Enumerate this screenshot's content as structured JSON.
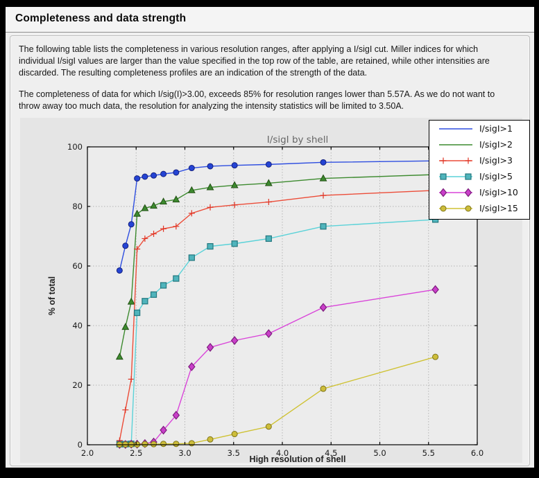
{
  "window": {
    "title": "Completeness and data strength"
  },
  "paragraphs": [
    "The following table lists the completeness in various resolution ranges, after applying a I/sigI cut. Miller indices for which individual I/sigI values are larger than the value specified in the top row of the table, are retained, while other intensities are discarded. The resulting completeness profiles are an indication of the strength of the data.",
    "The completeness of data for which I/sig(I)>3.00, exceeds  85% for resolution ranges lower than 5.57A. As we do not want to throw away too much data, the resolution for analyzing the intensity statistics will be limited to 3.50A."
  ],
  "chart_data": {
    "type": "line",
    "title": "I/sigI by shell",
    "xlabel": "High resolution of shell",
    "ylabel": "% of total",
    "xlim": [
      2.0,
      6.0
    ],
    "ylim": [
      0,
      100
    ],
    "xticks": [
      "2.0",
      "2.5",
      "3.0",
      "3.5",
      "4.0",
      "4.5",
      "5.0",
      "5.5",
      "6.0"
    ],
    "yticks": [
      "0",
      "20",
      "40",
      "60",
      "80",
      "100"
    ],
    "grid": true,
    "legend_position": "upper right",
    "x": [
      2.33,
      2.39,
      2.45,
      2.51,
      2.59,
      2.68,
      2.78,
      2.91,
      3.07,
      3.26,
      3.51,
      3.86,
      4.42,
      5.57
    ],
    "series": [
      {
        "name": "I/sigI>1",
        "color": "#2d4de0",
        "marker": "circle",
        "marker_fill": "#2544d4",
        "marker_edge": "#14217e",
        "legend_markers": "none",
        "values": [
          58.5,
          66.8,
          74.0,
          89.4,
          90.0,
          90.4,
          90.9,
          91.4,
          92.9,
          93.5,
          93.8,
          94.1,
          94.8,
          95.3
        ]
      },
      {
        "name": "I/sigI>2",
        "color": "#3c8a2e",
        "marker": "triangle",
        "marker_fill": "#3c8a2e",
        "marker_edge": "#235015",
        "legend_markers": "none",
        "values": [
          29.5,
          39.5,
          48.0,
          77.5,
          79.4,
          80.2,
          81.6,
          82.3,
          85.4,
          86.4,
          87.1,
          87.8,
          89.4,
          90.7
        ]
      },
      {
        "name": "I/sigI>3",
        "color": "#ec4c38",
        "marker": "plus",
        "marker_fill": "#ec4c38",
        "marker_edge": "#e03424",
        "legend_markers": "ends",
        "values": [
          1.4,
          11.7,
          22.0,
          65.7,
          69.2,
          70.8,
          72.5,
          73.3,
          77.7,
          79.7,
          80.5,
          81.5,
          83.7,
          85.4
        ]
      },
      {
        "name": "I/sigI>5",
        "color": "#5ad2d8",
        "marker": "square",
        "marker_fill": "#4fb4bc",
        "marker_edge": "#23777e",
        "legend_markers": "ends",
        "values": [
          0.2,
          0.2,
          0.3,
          44.3,
          48.2,
          50.4,
          53.5,
          55.8,
          62.8,
          66.6,
          67.5,
          69.2,
          73.3,
          75.6
        ]
      },
      {
        "name": "I/sigI>10",
        "color": "#d944d9",
        "marker": "diamond",
        "marker_fill": "#c93fc9",
        "marker_edge": "#7d1d7d",
        "legend_markers": "ends",
        "values": [
          0.1,
          0.1,
          0.2,
          0.2,
          0.4,
          0.9,
          4.9,
          9.9,
          26.2,
          32.7,
          35.0,
          37.3,
          46.1,
          52.1
        ]
      },
      {
        "name": "I/sigI>15",
        "color": "#cfc233",
        "marker": "circle",
        "marker_fill": "#cdbd3a",
        "marker_edge": "#7e7419",
        "legend_markers": "ends",
        "values": [
          0.1,
          0.1,
          0.1,
          0.1,
          0.2,
          0.2,
          0.3,
          0.3,
          0.5,
          1.8,
          3.6,
          6.1,
          18.8,
          29.5
        ]
      }
    ]
  }
}
